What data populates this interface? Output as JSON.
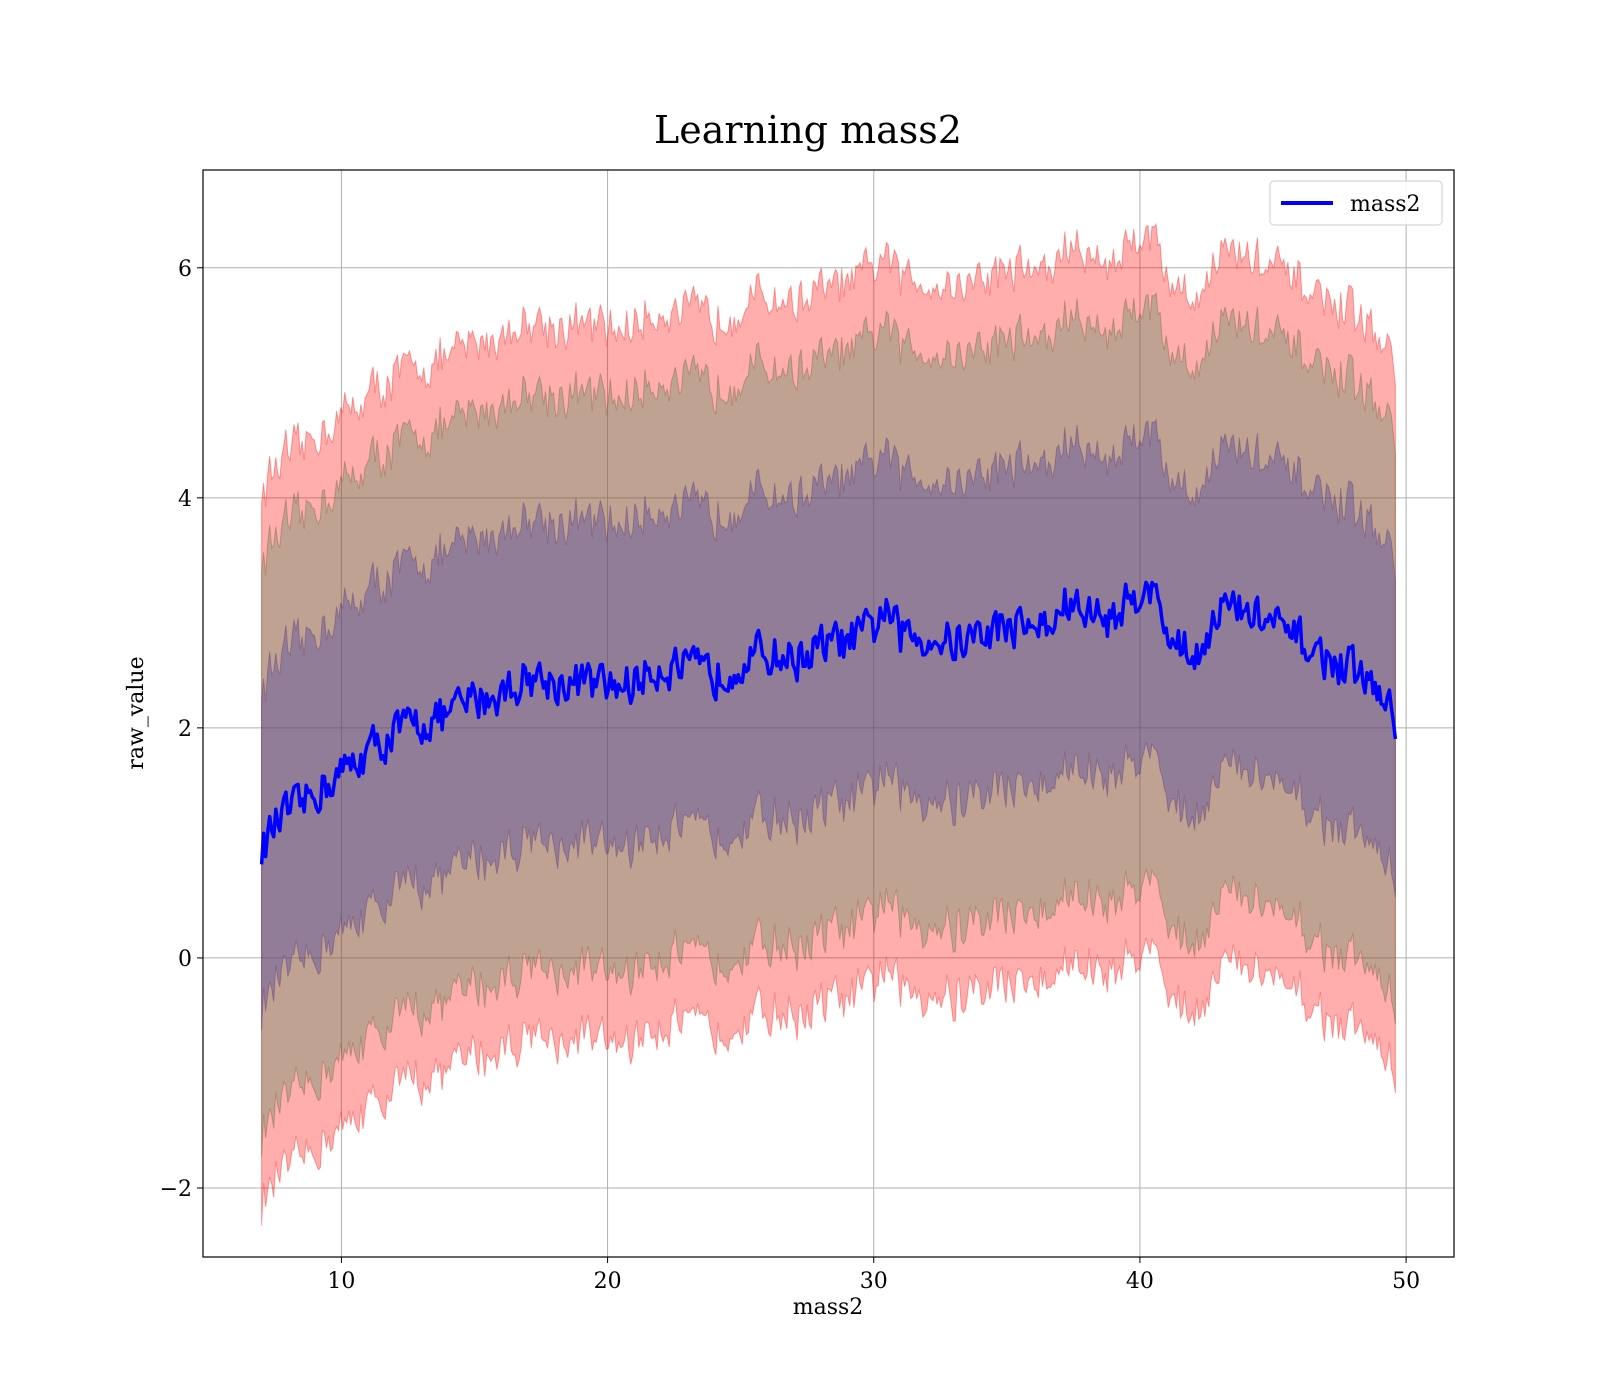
{
  "chart_data": {
    "type": "line",
    "title": "Learning mass2",
    "xlabel": "mass2",
    "ylabel": "raw_value",
    "xlim": [
      4.8,
      51.8
    ],
    "ylim": [
      -2.6,
      6.85
    ],
    "xticks": [
      10,
      20,
      30,
      40,
      50
    ],
    "yticks": [
      -2,
      0,
      2,
      4,
      6
    ],
    "grid": true,
    "legend_position": "upper right",
    "colors": {
      "line": "#0000ff",
      "band": "#ff0000",
      "band_mid": "#2e8b57",
      "band_inner": "#3a3aa0",
      "grid": "#b0b0b0"
    },
    "series": [
      {
        "name": "mass2",
        "x": [
          7.0,
          7.5,
          8.0,
          8.5,
          9.0,
          10.0,
          11.0,
          12.0,
          13.0,
          14.0,
          15.0,
          16.0,
          17.0,
          18.0,
          19.0,
          20.0,
          21.0,
          22.0,
          23.0,
          24.0,
          25.0,
          26.0,
          27.0,
          28.0,
          29.0,
          30.0,
          30.3,
          31.0,
          32.0,
          33.0,
          34.0,
          35.0,
          36.0,
          36.8,
          37.0,
          38.0,
          39.0,
          40.0,
          40.2,
          41.0,
          42.0,
          43.0,
          44.0,
          45.0,
          45.5,
          46.0,
          47.0,
          48.0,
          49.0,
          49.6
        ],
        "y": [
          0.95,
          1.15,
          1.25,
          1.3,
          1.45,
          1.6,
          1.8,
          1.95,
          2.05,
          2.1,
          2.25,
          2.3,
          2.45,
          2.4,
          2.4,
          2.35,
          2.4,
          2.55,
          2.5,
          2.45,
          2.6,
          2.65,
          2.6,
          2.7,
          2.75,
          2.85,
          3.05,
          2.8,
          2.8,
          2.75,
          2.8,
          2.9,
          2.9,
          2.85,
          3.1,
          3.0,
          2.95,
          3.2,
          3.35,
          2.85,
          2.6,
          3.05,
          3.0,
          2.9,
          2.8,
          2.75,
          2.6,
          2.5,
          2.3,
          2.05
        ],
        "band_outer_halfwidth": 3.1,
        "band_mid_halfwidth": 2.5,
        "band_inner_halfwidth": 1.4
      }
    ]
  }
}
